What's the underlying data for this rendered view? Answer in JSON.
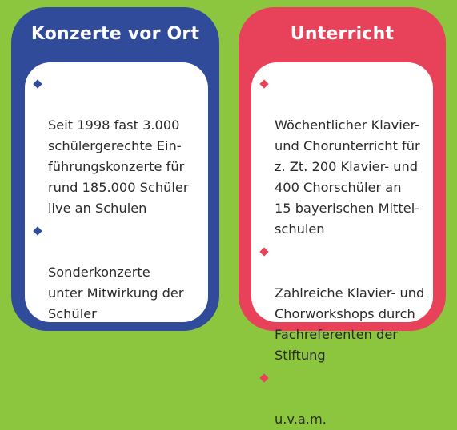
{
  "colors": {
    "background": "#8cc63f",
    "left_accent": "#2f4b9a",
    "right_accent": "#e8425a"
  },
  "left": {
    "title": "Konzerte vor Ort",
    "bullet_icon": "diamond-bullet-icon",
    "items": [
      {
        "text": "Seit 1998 fast 3.000\nschülergerechte Ein-\nführungskonzerte für\nrund 185.000 Schüler\nlive an Schulen"
      },
      {
        "text": "Sonderkonzerte\nunter Mitwirkung der\nSchüler"
      }
    ]
  },
  "right": {
    "title": "Unterricht",
    "bullet_icon": "diamond-bullet-icon",
    "items": [
      {
        "text": "Wöchentlicher Klavier-\nund Chorunterricht für\nz. Zt. 200 Klavier- und\n400 Chorschüler an\n15 bayerischen Mittel-\nschulen"
      },
      {
        "text": "Zahlreiche Klavier- und\nChorworkshops durch\nFachreferenten der\nStiftung"
      },
      {
        "text": "u.v.a.m."
      }
    ]
  }
}
